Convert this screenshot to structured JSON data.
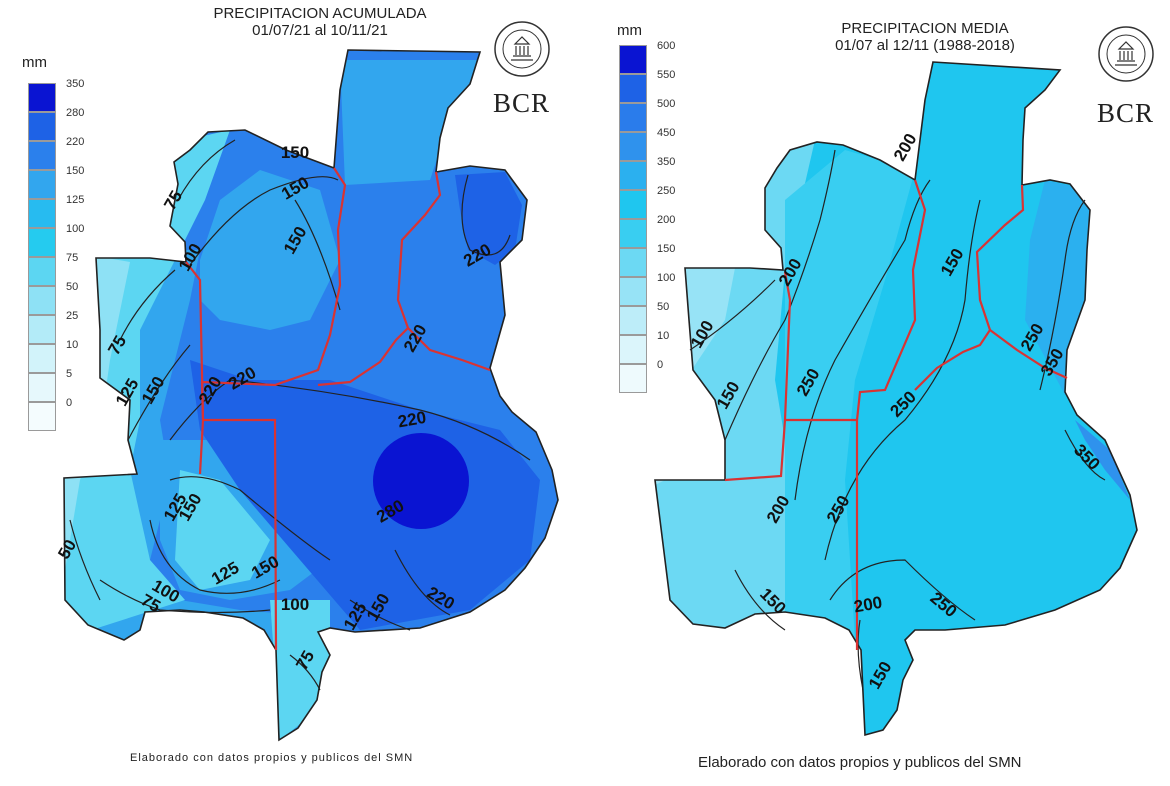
{
  "left": {
    "title_line1": "PRECIPITACION ACUMULADA",
    "title_line2": "01/07/21 al 10/11/21",
    "unit": "mm",
    "legend": [
      {
        "label": "350",
        "color": "#0a14d2"
      },
      {
        "label": "280",
        "color": "#1e62e6"
      },
      {
        "label": "220",
        "color": "#2b80ec"
      },
      {
        "label": "150",
        "color": "#32a6ee"
      },
      {
        "label": "125",
        "color": "#27bbf0"
      },
      {
        "label": "100",
        "color": "#25cbef"
      },
      {
        "label": "75",
        "color": "#5cd6f2"
      },
      {
        "label": "50",
        "color": "#8ee1f5"
      },
      {
        "label": "25",
        "color": "#b3ebf8"
      },
      {
        "label": "10",
        "color": "#d2f3fa"
      },
      {
        "label": "5",
        "color": "#e6f8fc"
      },
      {
        "label": "0",
        "color": "#f4fcfe"
      }
    ],
    "logo_text": "BCR",
    "footer": "Elaborado con datos propios y publicos del SMN",
    "isolines": [
      "75",
      "150",
      "150",
      "150",
      "220",
      "100",
      "75",
      "125",
      "150",
      "220",
      "220",
      "220",
      "220",
      "280",
      "125",
      "150",
      "125",
      "150",
      "100",
      "75",
      "50",
      "100",
      "125",
      "150",
      "220",
      "75"
    ]
  },
  "right": {
    "title_line1": "PRECIPITACION MEDIA",
    "title_line2": "01/07 al 12/11 (1988-2018)",
    "unit": "mm",
    "legend": [
      {
        "label": "600",
        "color": "#0a14d2"
      },
      {
        "label": "550",
        "color": "#1e62e6"
      },
      {
        "label": "500",
        "color": "#2a7ceb"
      },
      {
        "label": "450",
        "color": "#2f92ed"
      },
      {
        "label": "350",
        "color": "#2bb0ef"
      },
      {
        "label": "250",
        "color": "#1fc6ef"
      },
      {
        "label": "200",
        "color": "#39cef1"
      },
      {
        "label": "150",
        "color": "#6cd9f3"
      },
      {
        "label": "100",
        "color": "#97e3f6"
      },
      {
        "label": "50",
        "color": "#bdedf9"
      },
      {
        "label": "10",
        "color": "#dbf5fb"
      },
      {
        "label": "0",
        "color": "#eefafd"
      }
    ],
    "logo_text": "BCR",
    "footer": "Elaborado con datos propios y publicos del SMN",
    "isolines": [
      "200",
      "100",
      "150",
      "200",
      "250",
      "150",
      "250",
      "250",
      "350",
      "350",
      "200",
      "250",
      "200",
      "250",
      "150",
      "150"
    ]
  }
}
